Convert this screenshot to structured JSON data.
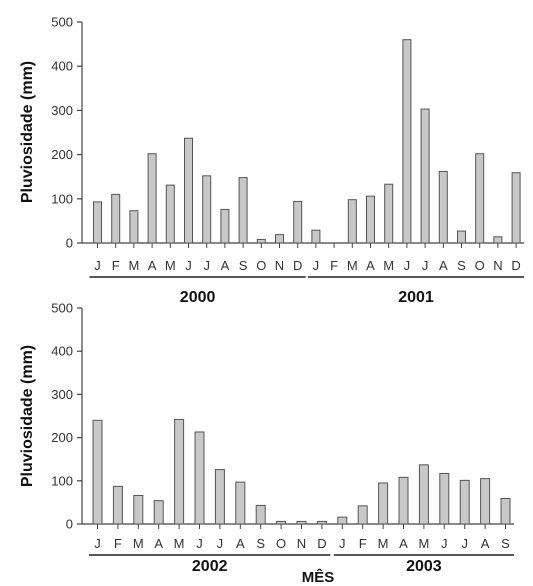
{
  "chart_data": [
    {
      "type": "bar",
      "ylabel": "Pluviosidade (mm)",
      "ylim": [
        0,
        500
      ],
      "yticks": [
        "0",
        "100",
        "200",
        "300",
        "400",
        "500"
      ],
      "categories": [
        "J",
        "F",
        "M",
        "A",
        "M",
        "J",
        "J",
        "A",
        "S",
        "O",
        "N",
        "D",
        "J",
        "F",
        "M",
        "A",
        "M",
        "J",
        "J",
        "A",
        "S",
        "O",
        "N",
        "D"
      ],
      "values": [
        93,
        110,
        73,
        202,
        131,
        237,
        152,
        76,
        148,
        8,
        19,
        94,
        29,
        0,
        98,
        106,
        133,
        460,
        303,
        162,
        27,
        202,
        14,
        159
      ],
      "years": [
        {
          "label": "2000",
          "start": 0,
          "end": 11
        },
        {
          "label": "2001",
          "start": 12,
          "end": 23
        }
      ]
    },
    {
      "type": "bar",
      "ylabel": "Pluviosidade (mm)",
      "xlabel": "MÊS",
      "ylim": [
        0,
        500
      ],
      "yticks": [
        "0",
        "100",
        "200",
        "300",
        "400",
        "500"
      ],
      "categories": [
        "J",
        "F",
        "M",
        "A",
        "M",
        "J",
        "J",
        "A",
        "S",
        "O",
        "N",
        "D",
        "J",
        "F",
        "M",
        "A",
        "M",
        "J",
        "J",
        "A",
        "S"
      ],
      "values": [
        240,
        87,
        66,
        54,
        242,
        213,
        126,
        97,
        43,
        6,
        6,
        6,
        16,
        42,
        95,
        108,
        137,
        117,
        101,
        105,
        59
      ],
      "years": [
        {
          "label": "2002",
          "start": 0,
          "end": 11
        },
        {
          "label": "2003",
          "start": 12,
          "end": 20
        }
      ]
    }
  ]
}
